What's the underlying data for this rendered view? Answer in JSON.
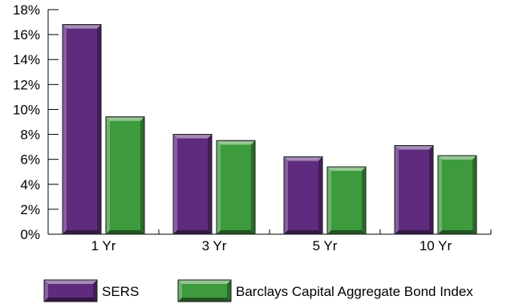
{
  "chart_data": {
    "type": "bar",
    "title": "",
    "xlabel": "",
    "ylabel": "",
    "categories": [
      "1 Yr",
      "3 Yr",
      "5 Yr",
      "10 Yr"
    ],
    "series": [
      {
        "name": "SERS",
        "values": [
          16.8,
          8.0,
          6.2,
          7.1
        ],
        "color": "#5e2b7e"
      },
      {
        "name": "Barclays Capital Aggregate Bond Index",
        "values": [
          9.4,
          7.5,
          5.4,
          6.3
        ],
        "color": "#3d9a3d"
      }
    ],
    "ylim": [
      0,
      18
    ],
    "yticks": [
      "0%",
      "2%",
      "4%",
      "6%",
      "8%",
      "10%",
      "12%",
      "14%",
      "16%",
      "18%"
    ],
    "grid": false,
    "legend_position": "bottom"
  }
}
